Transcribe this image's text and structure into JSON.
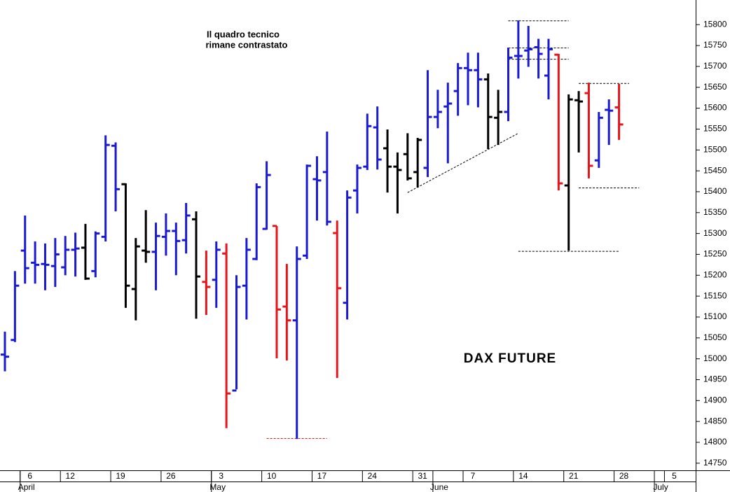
{
  "chart_data": {
    "type": "ohlc",
    "title": "DAX FUTURE",
    "annotation": [
      "Il quadro tecnico",
      "rimane contrastato"
    ],
    "categories": [
      null,
      null,
      "6",
      null,
      null,
      null,
      "12",
      null,
      null,
      null,
      null,
      "19",
      null,
      null,
      null,
      null,
      "26",
      null,
      null,
      null,
      null,
      "3",
      null,
      null,
      null,
      null,
      "10",
      null,
      null,
      null,
      null,
      "17",
      null,
      null,
      null,
      null,
      "24",
      null,
      null,
      null,
      null,
      "31",
      null,
      null,
      null,
      null,
      "7",
      null,
      null,
      null,
      null,
      "14",
      null,
      null,
      null,
      null,
      "21",
      null,
      null,
      null,
      null,
      "28",
      null,
      null,
      null,
      null,
      "5"
    ],
    "months": [
      null,
      null,
      "April",
      null,
      null,
      null,
      null,
      null,
      null,
      null,
      null,
      null,
      null,
      null,
      null,
      null,
      null,
      null,
      null,
      null,
      null,
      "May",
      null,
      null,
      null,
      null,
      null,
      null,
      null,
      null,
      null,
      null,
      null,
      null,
      null,
      null,
      null,
      null,
      null,
      null,
      null,
      null,
      null,
      "June",
      null,
      null,
      null,
      null,
      null,
      null,
      null,
      null,
      null,
      null,
      null,
      null,
      null,
      null,
      null,
      null,
      null,
      null,
      null,
      null,
      null,
      "July",
      null
    ],
    "open": [
      15010,
      15045,
      15259,
      15230,
      15227,
      15222,
      15219,
      15261,
      15266,
      15210,
      15292,
      15510,
      15418,
      15167,
      15259,
      15256,
      15292,
      15306,
      15284,
      15334,
      15184,
      15189,
      15252,
      14924,
      15175,
      15239,
      15311,
      15318,
      15125,
      15092,
      15247,
      15430,
      15447,
      15301,
      15134,
      15403,
      15460,
      15554,
      15504,
      15460,
      15490,
      15447,
      15457,
      15579,
      15604,
      15641,
      15696,
      15691,
      15669,
      15577,
      15591,
      15725,
      15738,
      15746,
      15678,
      15728,
      15415,
      15619,
      15636,
      15475,
      15596,
      15602,
      null,
      null,
      null,
      null,
      null
    ],
    "high": [
      15065,
      15210,
      15343,
      15281,
      15276,
      15289,
      15294,
      15302,
      15323,
      15305,
      15535,
      15518,
      15420,
      15289,
      15356,
      15326,
      15348,
      15326,
      15373,
      15353,
      15259,
      15281,
      15276,
      15200,
      15289,
      15420,
      15473,
      15318,
      15227,
      15269,
      15465,
      15485,
      15544,
      15331,
      15403,
      15465,
      15587,
      15604,
      15549,
      15494,
      15540,
      15529,
      15691,
      15644,
      15661,
      15708,
      15733,
      15733,
      15683,
      15644,
      15745,
      15810,
      15797,
      15766,
      15766,
      15730,
      15633,
      15641,
      15661,
      15591,
      15621,
      15658,
      null,
      null,
      null,
      null,
      null
    ],
    "low": [
      14970,
      15040,
      15180,
      15180,
      15164,
      15172,
      15200,
      15197,
      15189,
      15195,
      15281,
      15353,
      15122,
      15092,
      15230,
      15164,
      15247,
      15200,
      15252,
      15096,
      15105,
      15122,
      14834,
      14927,
      15094,
      15236,
      15309,
      15001,
      14996,
      14808,
      15239,
      15331,
      15319,
      14954,
      15094,
      15348,
      15452,
      15453,
      15398,
      15348,
      15427,
      15410,
      15435,
      15552,
      15468,
      15582,
      15607,
      15602,
      15502,
      15512,
      15569,
      15671,
      15699,
      15671,
      15621,
      15403,
      15259,
      15494,
      15432,
      15457,
      15512,
      15524,
      null,
      null,
      null,
      null,
      null
    ],
    "close": [
      15005,
      15175,
      15217,
      15225,
      15225,
      15250,
      15261,
      15264,
      15192,
      15300,
      15512,
      15406,
      15175,
      15269,
      15256,
      15294,
      15306,
      15282,
      15343,
      15197,
      15172,
      15261,
      14917,
      15172,
      15261,
      15411,
      15440,
      15118,
      15092,
      15239,
      15462,
      15427,
      15328,
      15169,
      15386,
      15457,
      15557,
      15477,
      15460,
      15452,
      15432,
      15524,
      15579,
      15591,
      15611,
      15696,
      15691,
      15669,
      15579,
      15591,
      15721,
      15725,
      15741,
      15730,
      15741,
      15420,
      15621,
      15616,
      15462,
      15577,
      15594,
      15561,
      null,
      null,
      null,
      null,
      null
    ],
    "colors": [
      "#1a1ad2",
      "#1a1ad2",
      "#1a1ad2",
      "#1a1ad2",
      "#1a1ad2",
      "#1a1ad2",
      "#1a1ad2",
      "#1a1ad2",
      "#000000",
      "#1a1ad2",
      "#1a1ad2",
      "#1a1ad2",
      "#000000",
      "#000000",
      "#000000",
      "#1a1ad2",
      "#1a1ad2",
      "#1a1ad2",
      "#1a1ad2",
      "#000000",
      "#e8141a",
      "#1a1ad2",
      "#e8141a",
      "#1a1ad2",
      "#1a1ad2",
      "#1a1ad2",
      "#1a1ad2",
      "#e8141a",
      "#e8141a",
      "#1a1ad2",
      "#1a1ad2",
      "#1a1ad2",
      "#1a1ad2",
      "#e8141a",
      "#1a1ad2",
      "#1a1ad2",
      "#1a1ad2",
      "#1a1ad2",
      "#000000",
      "#000000",
      "#000000",
      "#000000",
      "#1a1ad2",
      "#1a1ad2",
      "#1a1ad2",
      "#1a1ad2",
      "#1a1ad2",
      "#1a1ad2",
      "#000000",
      "#000000",
      "#1a1ad2",
      "#1a1ad2",
      "#1a1ad2",
      "#1a1ad2",
      "#1a1ad2",
      "#e8141a",
      "#000000",
      "#000000",
      "#e8141a",
      "#1a1ad2",
      "#1a1ad2",
      "#e8141a",
      null,
      null,
      null,
      null,
      null
    ],
    "ylim": [
      14733,
      15859
    ],
    "yticks": [
      14750,
      14800,
      14850,
      14900,
      14950,
      15000,
      15050,
      15100,
      15150,
      15200,
      15250,
      15300,
      15350,
      15400,
      15450,
      15500,
      15550,
      15600,
      15650,
      15700,
      15750,
      15800
    ],
    "levels": [
      {
        "value": 15810,
        "from": 50,
        "to": 56,
        "color": "#000000"
      },
      {
        "value": 15745,
        "from": 50,
        "to": 56,
        "color": "#000000"
      },
      {
        "value": 15718,
        "from": 50,
        "to": 56,
        "color": "#000000"
      },
      {
        "value": 15660,
        "from": 57,
        "to": 62,
        "color": "#000000"
      },
      {
        "value": 15410,
        "from": 57,
        "to": 63,
        "color": "#000000"
      },
      {
        "value": 15258,
        "from": 51,
        "to": 61,
        "color": "#000000"
      },
      {
        "value": 14810,
        "from": 26,
        "to": 32,
        "color": "#e8141a"
      }
    ],
    "trendline": {
      "x": [
        40,
        51
      ],
      "y": [
        15398,
        15540
      ]
    }
  }
}
